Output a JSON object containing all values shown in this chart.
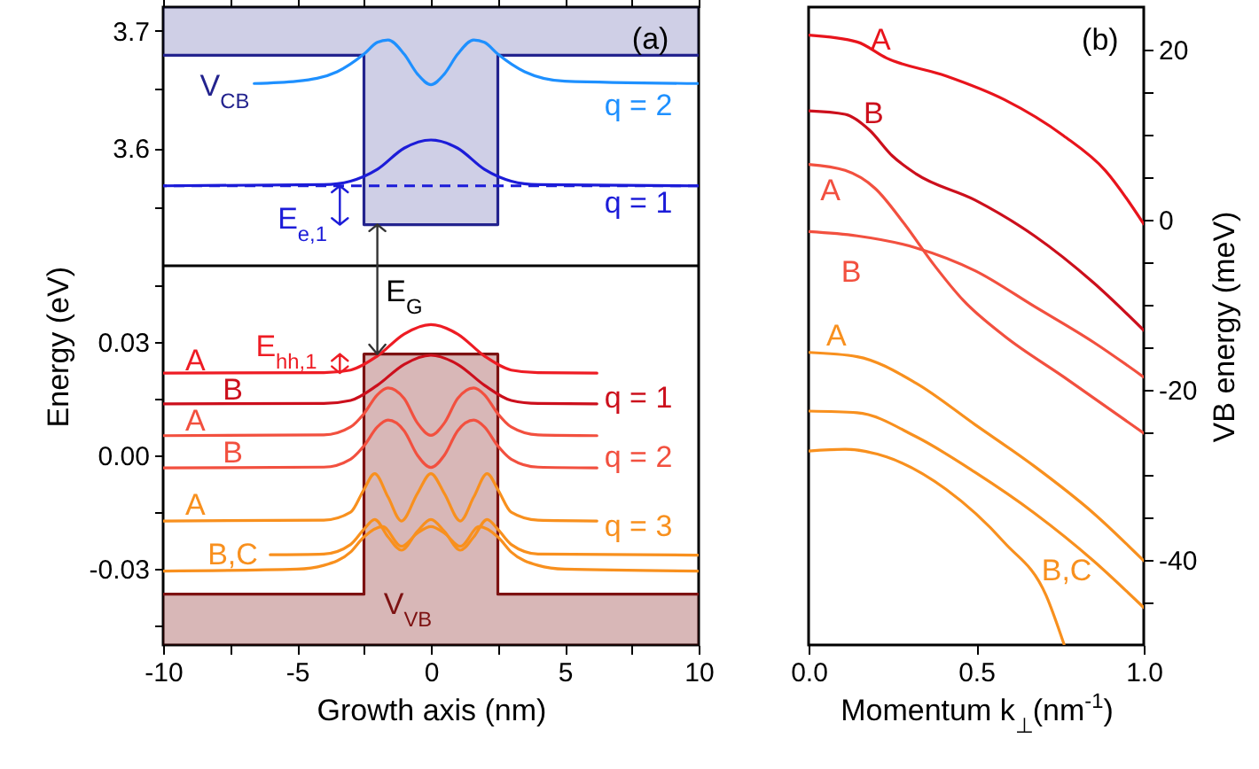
{
  "chart_data": [
    {
      "type": "line",
      "xlim": [
        -10,
        10
      ],
      "xticks": [
        -10,
        {
          "value": -7.5,
          "label": null
        },
        -5,
        {
          "value": -2.5,
          "label": null
        },
        0,
        {
          "value": 2.5,
          "label": null
        },
        5,
        {
          "value": 7.5,
          "label": null
        },
        10
      ],
      "ylim": [
        3.5,
        3.72
      ],
      "yticks": [
        {
          "value": 3.55,
          "label": null
        },
        3.6,
        {
          "value": 3.65,
          "label": null
        },
        3.7
      ],
      "tick_labels": "y",
      "series": [
        {
          "color": "#23238e",
          "x": [
            -10,
            -2.5,
            -2.5,
            2.5,
            2.5,
            10
          ],
          "values": [
            3.679,
            3.679,
            3.535,
            3.535,
            3.679,
            3.679
          ]
        },
        {
          "color": "#1c1cd8",
          "x": [
            -10,
            -4,
            -3,
            -2,
            -1,
            0,
            1,
            2,
            3,
            4,
            10
          ],
          "values": [
            3.568,
            3.569,
            3.572,
            3.582,
            3.6,
            3.607,
            3.6,
            3.582,
            3.572,
            3.569,
            3.568
          ]
        },
        {
          "color": "#1e90ff",
          "x": [
            -6.6,
            -5,
            -3.5,
            -2.5,
            -2,
            -1.6,
            -1,
            -0.5,
            0,
            0.5,
            1,
            1.6,
            2,
            2.5,
            3.5,
            5,
            10
          ],
          "values": [
            3.655,
            3.657,
            3.665,
            3.68,
            3.69,
            3.692,
            3.68,
            3.663,
            3.654,
            3.663,
            3.68,
            3.692,
            3.69,
            3.68,
            3.665,
            3.657,
            3.655
          ]
        }
      ],
      "ref_lines": [
        {
          "axis": "y",
          "value": 3.568,
          "line_style": "dashed",
          "color": "#1c1cd8"
        }
      ],
      "annotations": [
        "(a)",
        "V$_{CB}$",
        "q = 2",
        "q = 1",
        "E$_{e,1}$"
      ]
    },
    {
      "type": "line",
      "xlim": [
        -10,
        10
      ],
      "xticks": [
        -10,
        {
          "value": -7.5,
          "label": null
        },
        -5,
        {
          "value": -2.5,
          "label": null
        },
        0,
        {
          "value": 2.5,
          "label": null
        },
        5,
        {
          "value": 7.5,
          "label": null
        },
        10
      ],
      "ylim": [
        -0.05,
        0.05
      ],
      "yticks": [
        {
          "value": -0.045,
          "label": null
        },
        -0.03,
        {
          "value": -0.015,
          "label": null
        },
        {
          "value": 0,
          "label": "0.00"
        },
        {
          "value": 0.015,
          "label": null
        },
        0.03,
        {
          "value": 0.045,
          "label": null
        }
      ],
      "xlabel": "Growth axis (nm)",
      "ylabel": "Energy (eV)",
      "series": [
        {
          "color": "#7d1212",
          "x": [
            -10,
            -2.5,
            -2.5,
            2.5,
            2.5,
            10
          ],
          "values": [
            -0.0366,
            -0.0366,
            0.0267,
            0.0267,
            -0.0366,
            -0.0366
          ]
        },
        {
          "color": "#ee1c24",
          "x": [
            -10,
            -4,
            -3,
            -2,
            -1,
            0,
            1,
            2,
            3,
            4,
            6.2
          ],
          "values": [
            0.0217,
            0.0218,
            0.0225,
            0.0262,
            0.032,
            0.0345,
            0.032,
            0.0262,
            0.0225,
            0.0218,
            0.0217
          ]
        },
        {
          "color": "#cc0f1c",
          "x": [
            -10,
            -4,
            -3,
            -2,
            -1,
            0,
            1,
            2,
            3,
            4,
            6.2
          ],
          "values": [
            0.0136,
            0.0137,
            0.0145,
            0.0185,
            0.024,
            0.0264,
            0.024,
            0.0185,
            0.0145,
            0.0137,
            0.0136
          ]
        },
        {
          "color": "#f2503f",
          "x": [
            -10,
            -4,
            -3,
            -2.5,
            -2,
            -1.6,
            -1,
            -0.5,
            0,
            0.5,
            1,
            1.6,
            2,
            2.5,
            3,
            4,
            6.2
          ],
          "values": [
            0.0052,
            0.0054,
            0.0075,
            0.011,
            0.016,
            0.0178,
            0.015,
            0.0085,
            0.0053,
            0.0085,
            0.015,
            0.0178,
            0.016,
            0.011,
            0.0075,
            0.0054,
            0.0052
          ]
        },
        {
          "color": "#f2503f",
          "x": [
            -10,
            -4,
            -3,
            -2.5,
            -2,
            -1.6,
            -1,
            -0.5,
            0,
            0.5,
            1,
            1.6,
            2,
            2.5,
            3,
            4,
            6.2
          ],
          "values": [
            -0.0033,
            -0.0031,
            -0.001,
            0.0025,
            0.0075,
            0.0093,
            0.0065,
            0,
            -0.0032,
            0,
            0.0065,
            0.0093,
            0.0075,
            0.0025,
            -0.001,
            -0.0031,
            -0.0033
          ]
        },
        {
          "color": "#f8901e",
          "x": [
            -10,
            -4,
            -3,
            -2.5,
            -2.1,
            -1.6,
            -1.1,
            -0.5,
            0,
            0.5,
            1.1,
            1.6,
            2.1,
            2.5,
            3,
            4,
            6.2
          ],
          "values": [
            -0.0173,
            -0.0171,
            -0.015,
            -0.009,
            -0.0048,
            -0.011,
            -0.0173,
            -0.01,
            -0.0048,
            -0.01,
            -0.0173,
            -0.011,
            -0.0048,
            -0.009,
            -0.015,
            -0.0171,
            -0.0173
          ]
        },
        {
          "color": "#f8901e",
          "x": [
            -6,
            -4,
            -3,
            -2.5,
            -2.1,
            -1.6,
            -1.1,
            -0.5,
            0,
            0.5,
            1.1,
            1.6,
            2.1,
            2.5,
            3,
            4,
            10
          ],
          "values": [
            -0.0262,
            -0.026,
            -0.0235,
            -0.0195,
            -0.0169,
            -0.0215,
            -0.025,
            -0.02,
            -0.0169,
            -0.02,
            -0.025,
            -0.0215,
            -0.0169,
            -0.0195,
            -0.0235,
            -0.026,
            -0.0263
          ]
        },
        {
          "color": "#f8901e",
          "x": [
            -10,
            -5,
            -4,
            -3,
            -2.5,
            -1.8,
            -1.1,
            -0.5,
            0,
            0.5,
            1.1,
            1.8,
            2.5,
            3,
            4,
            5,
            10
          ],
          "values": [
            -0.0305,
            -0.03,
            -0.029,
            -0.0255,
            -0.0215,
            -0.0188,
            -0.024,
            -0.0205,
            -0.0188,
            -0.0205,
            -0.024,
            -0.0188,
            -0.0215,
            -0.0255,
            -0.029,
            -0.03,
            -0.0305
          ]
        }
      ],
      "annotations": [
        "E$_{G}$",
        "E$_{hh,1}$",
        "A",
        "B",
        "A",
        "B",
        "A",
        "B,C",
        "q = 1",
        "q = 2",
        "q = 3",
        "V$_{VB}$"
      ]
    },
    {
      "type": "line",
      "xlim": [
        0,
        1
      ],
      "xticks": [
        {
          "value": 0,
          "label": "0.0"
        },
        0.5,
        {
          "value": 1,
          "label": "1.0"
        }
      ],
      "ylim": [
        -50,
        25
      ],
      "yticks": [
        {
          "value": -45,
          "label": null
        },
        -40,
        {
          "value": -35,
          "label": null
        },
        {
          "value": -30,
          "label": null
        },
        {
          "value": -25,
          "label": null
        },
        -20,
        {
          "value": -15,
          "label": null
        },
        {
          "value": -10,
          "label": null
        },
        {
          "value": -5,
          "label": null
        },
        0,
        {
          "value": 5,
          "label": null
        },
        {
          "value": 10,
          "label": null
        },
        {
          "value": 15,
          "label": null
        },
        20
      ],
      "xlabel": "Momentum k$_{⊥}$(nm$^{-1}$)",
      "ylabel": "VB energy (meV)",
      "series": [
        {
          "color": "#e8141c",
          "x": [
            0,
            0.145,
            0.233,
            0.41,
            0.585,
            0.76,
            0.885,
            1
          ],
          "values": [
            21.7,
            20.9,
            19,
            16.9,
            14.1,
            9.9,
            5.8,
            -0.5
          ]
        },
        {
          "color": "#cc0f1c",
          "x": [
            0,
            0.109,
            0.18,
            0.25,
            0.32,
            0.497,
            0.674,
            0.85,
            1
          ],
          "values": [
            12.8,
            12.4,
            10.6,
            7.5,
            5.4,
            2.3,
            -1.9,
            -7.4,
            -13
          ]
        },
        {
          "color": "#f2503f",
          "x": [
            0,
            0.109,
            0.198,
            0.286,
            0.374,
            0.462,
            0.585,
            0.762,
            1
          ],
          "values": [
            6.5,
            5.8,
            3.7,
            -0.5,
            -5.3,
            -9.5,
            -13.7,
            -18.5,
            -25.1
          ]
        },
        {
          "color": "#f2503f",
          "x": [
            0,
            0.145,
            0.32,
            0.497,
            0.674,
            0.85,
            1
          ],
          "values": [
            -1.4,
            -1.9,
            -3.3,
            -6,
            -10.2,
            -14.4,
            -18.5
          ]
        },
        {
          "color": "#f8901e",
          "x": [
            0,
            0.145,
            0.32,
            0.497,
            0.674,
            0.85,
            1
          ],
          "values": [
            -15.6,
            -16.1,
            -19.2,
            -24.1,
            -29,
            -34.5,
            -40.1
          ]
        },
        {
          "color": "#f8901e",
          "x": [
            0,
            0.145,
            0.32,
            0.497,
            0.674,
            0.85,
            1
          ],
          "values": [
            -22.5,
            -22.7,
            -25.5,
            -29.7,
            -34.5,
            -40.1,
            -45.6
          ]
        },
        {
          "color": "#f8901e",
          "x": [
            0,
            0.109,
            0.233,
            0.41,
            0.585,
            0.709,
            0.762
          ],
          "values": [
            -27.2,
            -27,
            -27.9,
            -31.7,
            -38,
            -44.2,
            -49.9
          ]
        }
      ],
      "annotations": [
        "(b)",
        "A",
        "B",
        "A",
        "B",
        "A",
        "B,C"
      ]
    }
  ]
}
